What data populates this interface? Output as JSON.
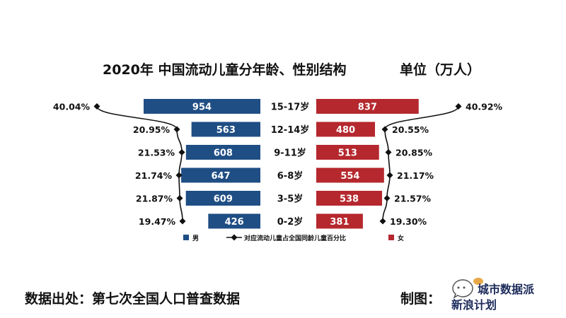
{
  "title": "2020年 中国流动儿童分年龄、性别结构",
  "unit_label": "单位（万人）",
  "source": "数据出处：第七次全国人口普查数据",
  "maker_label": "制图：",
  "watermark": {
    "text": "城市数据派",
    "sub": "新浪计划"
  },
  "colors": {
    "male": "#1f4e84",
    "female": "#b5282e",
    "line": "#111111"
  },
  "chart_data": {
    "type": "bar",
    "orientation": "horizontal-diverging",
    "categories": [
      "15-17岁",
      "12-14岁",
      "9-11岁",
      "6-8岁",
      "3-5岁",
      "0-2岁"
    ],
    "series": [
      {
        "name": "男",
        "values": [
          954,
          563,
          608,
          647,
          609,
          426
        ]
      },
      {
        "name": "女",
        "values": [
          837,
          480,
          513,
          554,
          538,
          381
        ]
      }
    ],
    "pct_series": {
      "name": "对应流动儿童占全国同龄儿童百分比",
      "male": [
        "40.04%",
        "20.95%",
        "21.53%",
        "21.74%",
        "21.87%",
        "19.47%"
      ],
      "female": [
        "40.92%",
        "20.55%",
        "20.85%",
        "21.17%",
        "21.57%",
        "19.30%"
      ]
    },
    "legend": [
      {
        "label": "男",
        "kind": "square",
        "color_key": "male"
      },
      {
        "label": "对应流动儿童占全国同龄儿童百分比",
        "kind": "line-diamond",
        "color_key": "line"
      },
      {
        "label": "女",
        "kind": "square",
        "color_key": "female"
      }
    ],
    "legend_position": "bottom"
  }
}
